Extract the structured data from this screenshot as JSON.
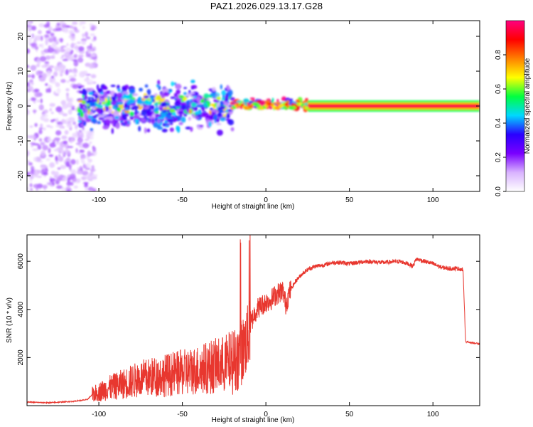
{
  "title": "PAZ1.2026.029.13.17.G28",
  "chart_data": [
    {
      "type": "heatmap",
      "xlabel": "Height of straight line (km)",
      "ylabel": "Frequency (Hz)",
      "xlim": [
        -143,
        128
      ],
      "ylim": [
        -24.5,
        24.5
      ],
      "xticks": [
        -100,
        -50,
        0,
        50,
        100
      ],
      "yticks": [
        -20,
        -10,
        0,
        10,
        20
      ],
      "colorbar": {
        "label": "Normalized spectral amplitude",
        "range": [
          0,
          1
        ],
        "ticks": [
          0.0,
          0.2,
          0.4,
          0.6,
          0.8
        ],
        "colormap": [
          "#ffffff",
          "#d9b3ff",
          "#7a00ff",
          "#2a00ff",
          "#00d8ff",
          "#00ff40",
          "#ffff00",
          "#ff8000",
          "#ff0000",
          "#ff0080"
        ]
      },
      "ridges": [
        {
          "x": [
            -112,
            -100,
            -80,
            -60,
            -40,
            -30,
            -20,
            -10,
            0,
            20,
            60,
            100,
            128
          ],
          "f": [
            0,
            0.5,
            1,
            1.5,
            1,
            -0.5,
            0,
            0,
            0,
            0,
            0,
            0,
            0
          ]
        }
      ],
      "regions": [
        {
          "name": "noise",
          "x_range": [
            -143,
            -102
          ],
          "f_range": [
            -24.5,
            24.5
          ],
          "amplitude": 0.1
        },
        {
          "name": "multipath",
          "x_range": [
            -112,
            -20
          ],
          "f_range": [
            -9,
            8
          ],
          "amplitude": 0.25
        },
        {
          "name": "transition",
          "x_range": [
            -20,
            25
          ],
          "f_range": [
            -1.5,
            2.5
          ],
          "amplitude": 0.7
        },
        {
          "name": "single-tone",
          "x_range": [
            25,
            128
          ],
          "f_range": [
            -0.5,
            0.5
          ],
          "amplitude": 1.0
        }
      ]
    },
    {
      "type": "line",
      "xlabel": "Height of straight line (km)",
      "ylabel": "SNR (10 * v/v)",
      "xlim": [
        -143,
        128
      ],
      "ylim": [
        0,
        7100
      ],
      "xticks": [
        -100,
        -50,
        0,
        50,
        100
      ],
      "yticks": [
        2000,
        4000,
        6000
      ],
      "color": "#e8372f",
      "series": [
        {
          "x": [
            -143,
            -130,
            -115,
            -107,
            -104,
            -95,
            -85,
            -75,
            -65,
            -55,
            -45,
            -35,
            -25,
            -18,
            -14,
            -12,
            -10,
            -9,
            -7,
            -5,
            -2,
            0,
            3,
            5,
            8,
            10,
            11,
            12,
            14,
            18,
            22,
            26,
            30,
            35,
            40,
            45,
            50,
            55,
            60,
            70,
            80,
            85,
            88,
            90,
            95,
            100,
            105,
            110,
            115,
            118,
            119,
            119.5,
            120,
            125,
            128
          ],
          "y": [
            150,
            120,
            180,
            250,
            450,
            700,
            900,
            1100,
            1200,
            1300,
            1400,
            1550,
            1700,
            1900,
            2300,
            2600,
            3000,
            3400,
            3800,
            4050,
            4200,
            4300,
            4400,
            4550,
            4700,
            4800,
            4500,
            4200,
            4700,
            5200,
            5500,
            5700,
            5800,
            5850,
            5950,
            5950,
            5900,
            5950,
            6000,
            5950,
            6000,
            5900,
            5800,
            6100,
            6000,
            5900,
            5750,
            5700,
            5700,
            5650,
            3800,
            2700,
            2650,
            2600,
            2550
          ]
        }
      ]
    }
  ]
}
